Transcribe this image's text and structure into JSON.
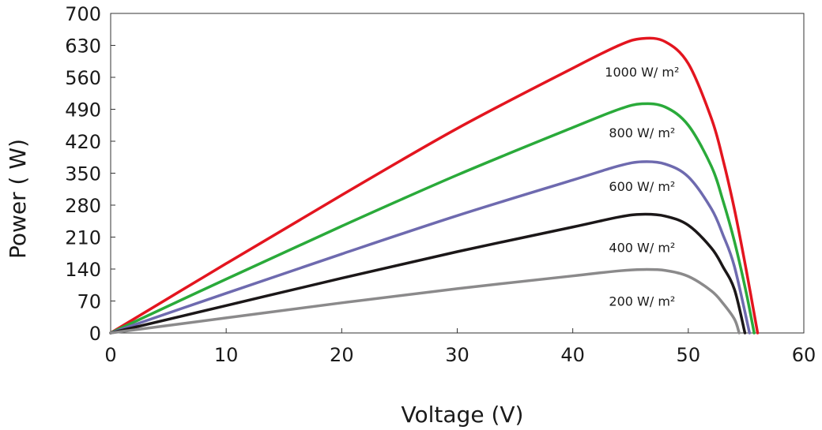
{
  "chart_data": {
    "type": "line",
    "title": "",
    "xlabel": "Voltage (V)",
    "ylabel": "Power ( W)",
    "xlim": [
      0,
      60
    ],
    "ylim": [
      0,
      700
    ],
    "xticks": [
      0,
      10,
      20,
      30,
      40,
      50,
      60
    ],
    "yticks": [
      0,
      70,
      140,
      210,
      280,
      350,
      420,
      490,
      560,
      630,
      700
    ],
    "grid": false,
    "legend": "inline labels",
    "series": [
      {
        "name": "1000 W/ m²",
        "color": "#e3151f",
        "label_at": [
          46,
          562
        ],
        "x": [
          0,
          10,
          20,
          30,
          40,
          44,
          46,
          48,
          50,
          52,
          53,
          54,
          55,
          56
        ],
        "y": [
          0,
          152,
          302,
          448,
          580,
          630,
          645,
          638,
          590,
          470,
          380,
          270,
          140,
          0
        ]
      },
      {
        "name": "800 W/ m²",
        "color": "#2aaa3a",
        "label_at": [
          46,
          429
        ],
        "x": [
          0,
          10,
          20,
          30,
          40,
          44,
          46,
          48,
          50,
          52,
          53,
          54,
          55,
          55.7
        ],
        "y": [
          0,
          118,
          234,
          346,
          450,
          490,
          502,
          495,
          455,
          365,
          290,
          200,
          90,
          0
        ]
      },
      {
        "name": "600 W/ m²",
        "color": "#6e6aaf",
        "label_at": [
          46,
          311
        ],
        "x": [
          0,
          10,
          20,
          30,
          40,
          44,
          46,
          48,
          50,
          52,
          53,
          54,
          55.3
        ],
        "y": [
          0,
          87,
          173,
          257,
          335,
          366,
          375,
          370,
          342,
          272,
          215,
          145,
          0
        ]
      },
      {
        "name": "400 W/ m²",
        "color": "#1b1718",
        "label_at": [
          46,
          177
        ],
        "x": [
          0,
          10,
          20,
          30,
          40,
          44,
          46,
          48,
          50,
          52,
          53,
          54,
          54.9
        ],
        "y": [
          0,
          60,
          120,
          178,
          232,
          254,
          260,
          256,
          236,
          186,
          145,
          95,
          0
        ]
      },
      {
        "name": "200 W/ m²",
        "color": "#8b8a8b",
        "label_at": [
          46,
          60
        ],
        "x": [
          0,
          10,
          20,
          30,
          40,
          44,
          46,
          48,
          50,
          52,
          53,
          54,
          54.4
        ],
        "y": [
          0,
          33,
          66,
          97,
          125,
          136,
          139,
          137,
          124,
          92,
          65,
          30,
          0
        ]
      }
    ]
  }
}
